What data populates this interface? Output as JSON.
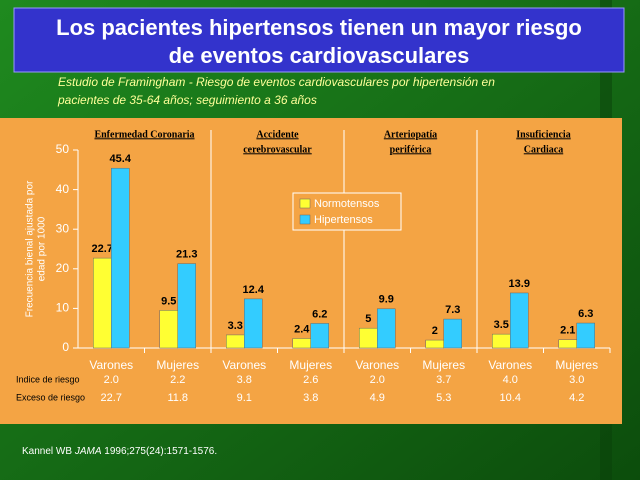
{
  "chart_data": {
    "type": "bar",
    "title": [
      "Los pacientes hipertensos tienen un mayor riesgo",
      "de eventos cardiovasculares"
    ],
    "subtitle": [
      "Estudio de Framingham - Riesgo de eventos cardiovasculares por hipertensión en",
      "pacientes de 35-64 años; seguimiento a 36 años"
    ],
    "y_label": [
      "Frecuencia bienal ajustada por",
      "edad por 1000"
    ],
    "groups": [
      [
        "Enfermedad Coronaria"
      ],
      [
        "Accidente",
        "cerebrovascular"
      ],
      [
        "Arteriopatía",
        "periférica"
      ],
      [
        "Insuficiencia",
        "Cardiaca"
      ]
    ],
    "categories": [
      "Varones",
      "Mujeres",
      "Varones",
      "Mujeres",
      "Varones",
      "Mujeres",
      "Varones",
      "Mujeres"
    ],
    "series": [
      {
        "name": "Normotensos",
        "color": "#ffff33",
        "values": [
          22.7,
          9.5,
          3.3,
          2.4,
          5,
          2,
          3.5,
          2.1
        ]
      },
      {
        "name": "Hipertensos",
        "color": "#33ccff",
        "values": [
          45.4,
          21.3,
          12.4,
          6.2,
          9.9,
          7.3,
          13.9,
          6.3
        ]
      }
    ],
    "ylim": [
      0,
      50
    ],
    "yticks": [
      0,
      10,
      20,
      30,
      40,
      50
    ],
    "rows": [
      {
        "label": "Indice de riesgo",
        "values": [
          "2.0",
          "2.2",
          "3.8",
          "2.6",
          "2.0",
          "3.7",
          "4.0",
          "3.0"
        ]
      },
      {
        "label": "Exceso de riesgo",
        "values": [
          "22.7",
          "11.8",
          "9.1",
          "3.8",
          "4.9",
          "5.3",
          "10.4",
          "4.2"
        ]
      }
    ],
    "source": [
      "Kannel WB ",
      "JAMA",
      " 1996;275(24):1571-1576."
    ]
  }
}
